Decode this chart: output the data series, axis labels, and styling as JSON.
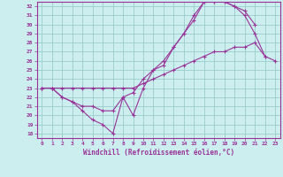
{
  "title": "",
  "xlabel": "Windchill (Refroidissement éolien,°C)",
  "xlim": [
    -0.5,
    23.5
  ],
  "ylim": [
    17.5,
    32.5
  ],
  "yticks": [
    18,
    19,
    20,
    21,
    22,
    23,
    24,
    25,
    26,
    27,
    28,
    29,
    30,
    31,
    32
  ],
  "xticks": [
    0,
    1,
    2,
    3,
    4,
    5,
    6,
    7,
    8,
    9,
    10,
    11,
    12,
    13,
    14,
    15,
    16,
    17,
    18,
    19,
    20,
    21,
    22,
    23
  ],
  "line_color": "#993399",
  "bg_color": "#cceeee",
  "grid_color": "#99cccc",
  "lines": [
    {
      "x": [
        0,
        1,
        2,
        3,
        4,
        5,
        6,
        7,
        8,
        9,
        10,
        11,
        12,
        13,
        14,
        15,
        16,
        17,
        18,
        19,
        20,
        21
      ],
      "y": [
        23,
        23,
        22,
        21.5,
        20.5,
        19.5,
        19,
        18,
        22,
        20,
        23,
        25,
        25.5,
        27.5,
        29,
        30.5,
        32.5,
        32.5,
        32.5,
        32,
        31.5,
        30
      ]
    },
    {
      "x": [
        0,
        1,
        2,
        3,
        4,
        5,
        6,
        7,
        8,
        9,
        10,
        11,
        12,
        13,
        14,
        15,
        16,
        17,
        18,
        19,
        20,
        21,
        22
      ],
      "y": [
        23,
        23,
        22,
        21.5,
        21,
        21,
        20.5,
        20.5,
        22,
        22.5,
        24,
        25,
        26,
        27.5,
        29,
        31,
        32.5,
        32.5,
        32.5,
        32,
        31,
        29,
        26.5
      ]
    },
    {
      "x": [
        0,
        1,
        2,
        3,
        4,
        5,
        6,
        7,
        8,
        9,
        10,
        11,
        12,
        13,
        14,
        15,
        16,
        17,
        18,
        19,
        20,
        21,
        22,
        23
      ],
      "y": [
        23,
        23,
        23,
        23,
        23,
        23,
        23,
        23,
        23,
        23,
        23.5,
        24,
        24.5,
        25,
        25.5,
        26,
        26.5,
        27,
        27,
        27.5,
        27.5,
        28,
        26.5,
        26
      ]
    }
  ]
}
